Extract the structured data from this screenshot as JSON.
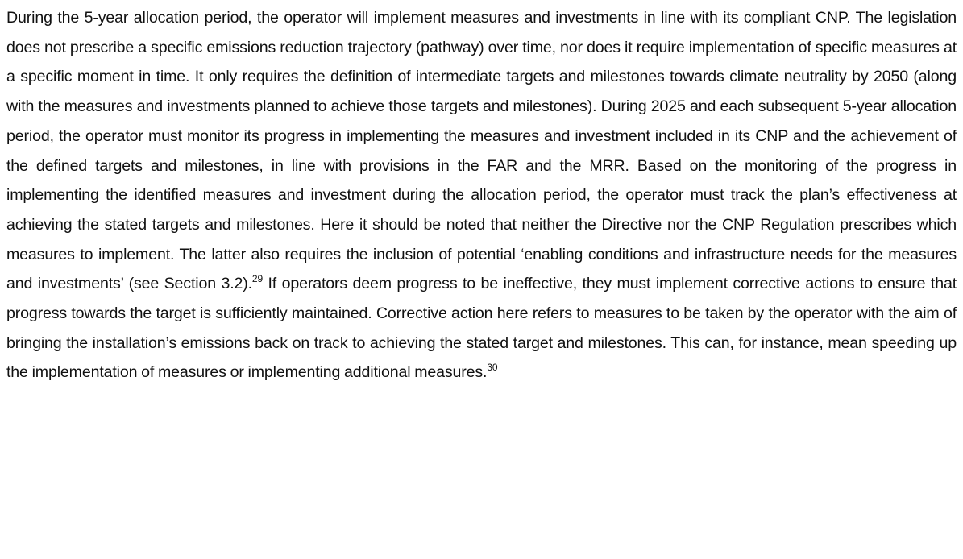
{
  "paragraph": {
    "text_1": "During the 5-year allocation period, the operator will implement measures and investments in line with its compliant CNP. The legislation does not prescribe a specific emissions reduction trajectory (pathway) over time, nor does it require implementation of specific measures at a specific moment in time. It only requires the definition of intermediate targets and milestones towards climate neutrality by 2050 (along with the measures and investments planned to achieve those targets and milestones). During 2025 and each subsequent 5-year allocation period, the operator must monitor its progress in implementing the measures and investment included in its CNP and the achievement of the defined targets and milestones, in line with provisions in the FAR and the MRR. Based on the monitoring of the progress in implementing the identified measures and investment during the allocation period, the operator must track the plan’s effectiveness at achieving the stated targets and milestones. Here it should be noted that neither the Directive nor the CNP Regulation prescribes which measures to implement. The latter also requires the inclusion of potential ‘enabling conditions and infrastructure needs for the measures and investments’ (see Section 3.2).",
    "footnote_1": "29",
    "text_2": " If operators deem progress to be ineffective, they must implement corrective actions to ensure that progress towards the target is sufficiently maintained. Corrective action here refers to measures to be taken by the operator with the aim of bringing the installation’s emissions back on track to achieving the stated target and milestones. This can, for instance, mean speeding up the implementation of measures or implementing additional measures.",
    "footnote_2": "30"
  }
}
